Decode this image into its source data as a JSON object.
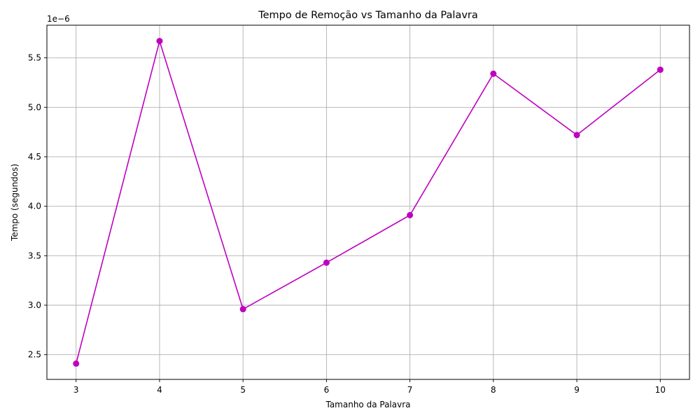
{
  "chart_data": {
    "type": "line",
    "title": "Tempo de Remoção vs Tamanho da Palavra",
    "xlabel": "Tamanho da Palavra",
    "ylabel": "Tempo (segundos)",
    "y_offset_label": "1e−6",
    "x": [
      3,
      4,
      5,
      6,
      7,
      8,
      9,
      10
    ],
    "series": [
      {
        "values": [
          2.41,
          5.67,
          2.96,
          3.43,
          3.91,
          5.34,
          4.72,
          5.38
        ],
        "color": "#bf00bf",
        "marker": "circle"
      }
    ],
    "xlim": [
      2.65,
      10.35
    ],
    "ylim": [
      2.25,
      5.83
    ],
    "x_ticks": [
      "3",
      "4",
      "5",
      "6",
      "7",
      "8",
      "9",
      "10"
    ],
    "y_ticks": [
      "2.5",
      "3.0",
      "3.5",
      "4.0",
      "4.5",
      "5.0",
      "5.5"
    ],
    "grid": true,
    "grid_color": "#b0b0b0"
  }
}
